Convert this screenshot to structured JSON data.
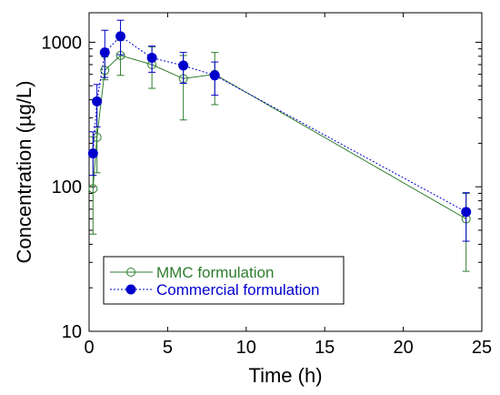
{
  "chart_data": {
    "type": "line",
    "xlabel": "Time (h)",
    "ylabel": "Concentration (µg/L)",
    "xlim": [
      0,
      25
    ],
    "ylim": [
      10,
      1600
    ],
    "yscale": "log",
    "grid": false,
    "legend_position": "bottom-left",
    "x_ticks": [
      "0",
      "5",
      "10",
      "15",
      "20",
      "25"
    ],
    "y_ticks": [
      "10",
      "100",
      "1000"
    ],
    "series": [
      {
        "name": "MMC formulation",
        "color": "#2e7d2e",
        "marker": "open-circle",
        "line_style": "solid",
        "x": [
          0.25,
          0.5,
          1,
          2,
          4,
          6,
          8,
          24
        ],
        "y": [
          97,
          220,
          640,
          810,
          700,
          560,
          600,
          60
        ],
        "err_low": [
          50,
          95,
          90,
          220,
          220,
          270,
          230,
          34
        ],
        "err_high": [
          125,
          150,
          150,
          220,
          230,
          250,
          250,
          30
        ]
      },
      {
        "name": "Commercial formulation",
        "color": "#0000cc",
        "marker": "filled-circle",
        "line_style": "dotted",
        "x": [
          0.25,
          0.5,
          1,
          2,
          4,
          6,
          8,
          24
        ],
        "y": [
          170,
          390,
          850,
          1100,
          780,
          690,
          590,
          67
        ],
        "err_low": [
          50,
          130,
          280,
          280,
          160,
          170,
          160,
          25
        ],
        "err_high": [
          70,
          120,
          360,
          320,
          160,
          160,
          140,
          24
        ]
      }
    ]
  }
}
